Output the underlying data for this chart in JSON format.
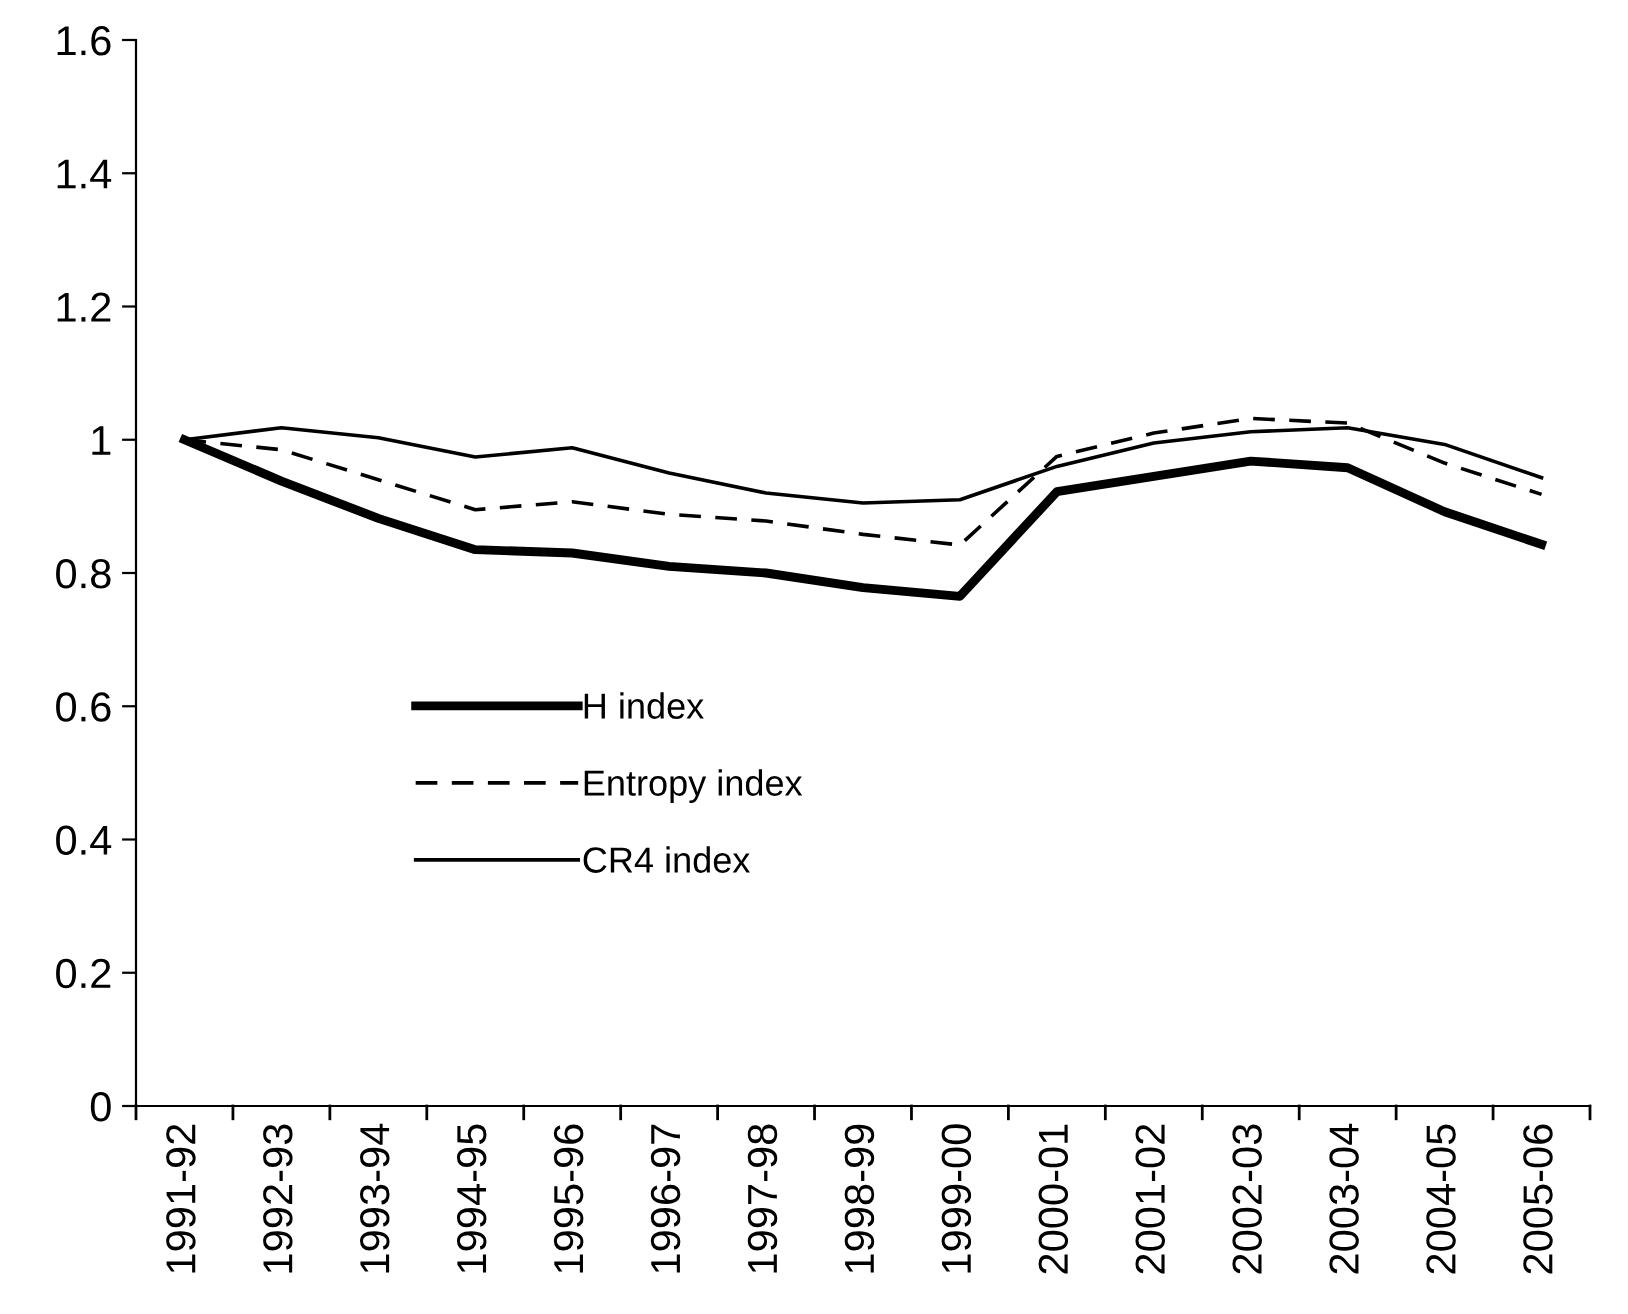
{
  "chart_data": {
    "type": "line",
    "categories": [
      "1991-92",
      "1992-93",
      "1993-94",
      "1994-95",
      "1995-96",
      "1996-97",
      "1997-98",
      "1998-99",
      "1999-00",
      "2000-01",
      "2001-02",
      "2002-03",
      "2003-04",
      "2004-05",
      "2005-06"
    ],
    "series": [
      {
        "name": "H index",
        "color": "#000000",
        "line_style": "solid",
        "values": [
          1.0,
          0.938,
          0.882,
          0.835,
          0.83,
          0.81,
          0.8,
          0.778,
          0.765,
          0.922,
          0.945,
          0.968,
          0.958,
          0.892,
          0.843
        ]
      },
      {
        "name": "Entropy index",
        "color": "#000000",
        "line_style": "dashed",
        "values": [
          1.0,
          0.985,
          0.94,
          0.895,
          0.907,
          0.888,
          0.878,
          0.858,
          0.842,
          0.975,
          1.01,
          1.032,
          1.025,
          0.965,
          0.918
        ]
      },
      {
        "name": "CR4 index",
        "color": "#000000",
        "line_style": "solid",
        "values": [
          1.0,
          1.018,
          1.003,
          0.974,
          0.988,
          0.95,
          0.92,
          0.905,
          0.91,
          0.96,
          0.995,
          1.012,
          1.018,
          0.993,
          0.943
        ]
      }
    ],
    "ylim": [
      0,
      1.6
    ],
    "yticks": [
      0,
      0.2,
      0.4,
      0.6,
      0.8,
      1,
      1.2,
      1.4,
      1.6
    ],
    "grid": false,
    "legend": "center left",
    "marker": "none"
  }
}
